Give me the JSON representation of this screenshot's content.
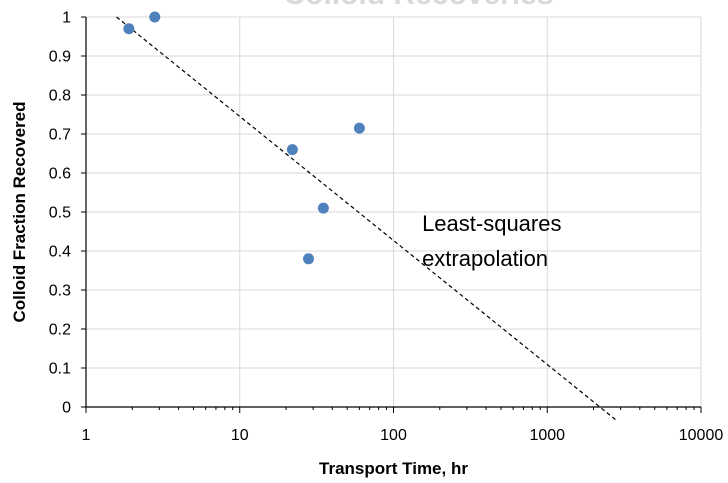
{
  "chart_data": {
    "type": "scatter",
    "title": "Colloid Recoveries",
    "xlabel": "Transport Time, hr",
    "ylabel": "Colloid Fraction Recovered",
    "x_scale": "log",
    "xlim": [
      1,
      10000
    ],
    "ylim": [
      0,
      1
    ],
    "x_ticks": [
      1,
      10,
      100,
      1000,
      10000
    ],
    "x_tick_labels": [
      "1",
      "10",
      "100",
      "1000",
      "10000"
    ],
    "y_ticks": [
      0,
      0.1,
      0.2,
      0.3,
      0.4,
      0.5,
      0.6,
      0.7,
      0.8,
      0.9,
      1
    ],
    "y_tick_labels": [
      "0",
      "0.1",
      "0.2",
      "0.3",
      "0.4",
      "0.5",
      "0.6",
      "0.7",
      "0.8",
      "0.9",
      "1"
    ],
    "grid": true,
    "series": [
      {
        "x": [
          1.9,
          2.8,
          22,
          28,
          35,
          60
        ],
        "y": [
          0.97,
          1.0,
          0.66,
          0.38,
          0.51,
          0.715
        ]
      }
    ],
    "trendline": {
      "style": "dashed",
      "points": [
        [
          1.58,
          1.0
        ],
        [
          2200,
          0.0
        ]
      ]
    },
    "annotation": {
      "lines": [
        "Least-squares",
        "extrapolation"
      ],
      "x": 400,
      "y": 0.5
    },
    "colors": {
      "marker": "#4f81bd",
      "grid": "#d9d9d9",
      "axis": "#000000",
      "trendline": "#000000",
      "title": "#d9d9d9"
    }
  }
}
